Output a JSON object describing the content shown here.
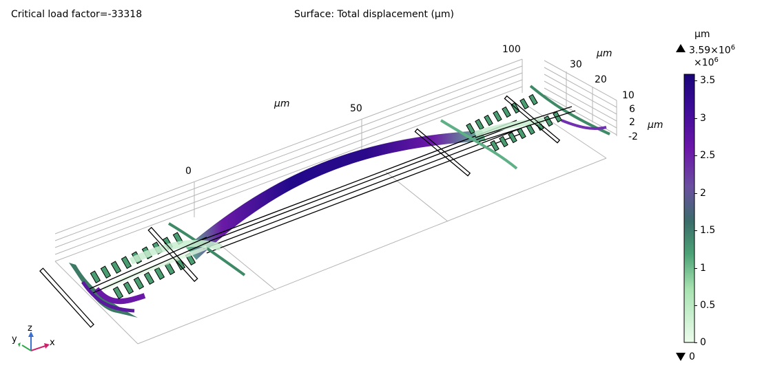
{
  "header": {
    "critical_load": "Critical load factor=-33318",
    "surface_title": "Surface: Total displacement (µm)"
  },
  "axes": {
    "unit_label": "µm",
    "x_ticks": [
      "0",
      "50",
      "100"
    ],
    "y_ticks": [
      "20",
      "30"
    ],
    "z_ticks": [
      "-2",
      "2",
      "6",
      "10"
    ]
  },
  "triad": {
    "x": "x",
    "y": "y",
    "z": "z"
  },
  "colorbar": {
    "unit": "µm",
    "max_label": "3.59×10",
    "max_exp": "6",
    "scale": "×10",
    "scale_exp": "6",
    "min_label": "0",
    "ticks": [
      "3.5",
      "3",
      "2.5",
      "2",
      "1.5",
      "1",
      "0.5",
      "0"
    ],
    "colors": [
      "#e8fbe8",
      "#9cdca6",
      "#3e8c6a",
      "#5a4f95",
      "#6a18a8",
      "#2a0a8a",
      "#1a0578"
    ]
  }
}
